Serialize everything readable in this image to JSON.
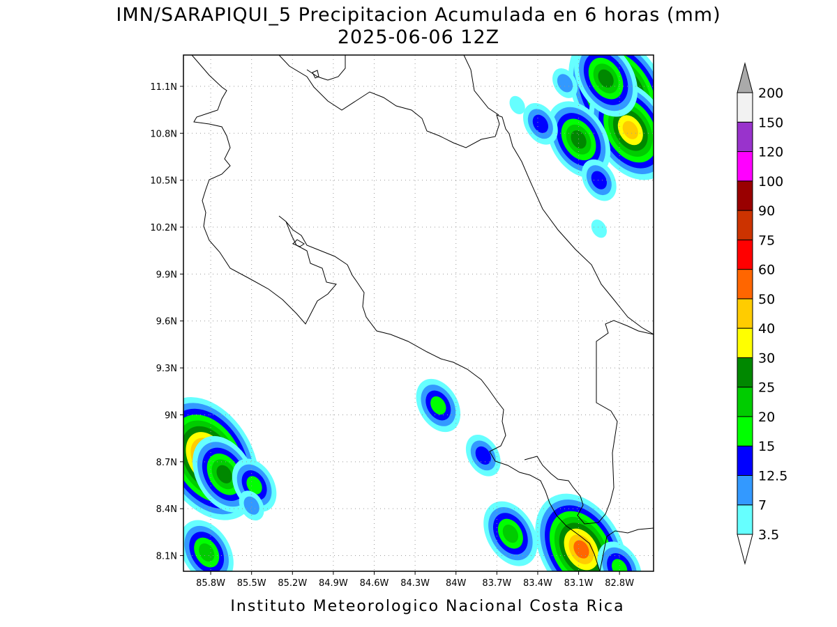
{
  "title": {
    "line1": "IMN/SARAPIQUI_5 Precipitacion Acumulada en 6 horas (mm)",
    "line2": "2025-06-06 12Z"
  },
  "footer": "Instituto Meteorologico Nacional Costa Rica",
  "map": {
    "lon_range": [
      -86.0,
      -82.55
    ],
    "lat_range": [
      8.0,
      11.3
    ],
    "x_ticks": [
      {
        "value": -85.8,
        "label": "85.8W"
      },
      {
        "value": -85.5,
        "label": "85.5W"
      },
      {
        "value": -85.2,
        "label": "85.2W"
      },
      {
        "value": -84.9,
        "label": "84.9W"
      },
      {
        "value": -84.6,
        "label": "84.6W"
      },
      {
        "value": -84.3,
        "label": "84.3W"
      },
      {
        "value": -84.0,
        "label": "84W"
      },
      {
        "value": -83.7,
        "label": "83.7W"
      },
      {
        "value": -83.4,
        "label": "83.4W"
      },
      {
        "value": -83.1,
        "label": "83.1W"
      },
      {
        "value": -82.8,
        "label": "82.8W"
      }
    ],
    "y_ticks": [
      {
        "value": 11.1,
        "label": "11.1N"
      },
      {
        "value": 10.8,
        "label": "10.8N"
      },
      {
        "value": 10.5,
        "label": "10.5N"
      },
      {
        "value": 10.2,
        "label": "10.2N"
      },
      {
        "value": 9.9,
        "label": "9.9N"
      },
      {
        "value": 9.6,
        "label": "9.6N"
      },
      {
        "value": 9.3,
        "label": "9.3N"
      },
      {
        "value": 9.0,
        "label": "9N"
      },
      {
        "value": 8.7,
        "label": "8.7N"
      },
      {
        "value": 8.4,
        "label": "8.4N"
      },
      {
        "value": 8.1,
        "label": "8.1N"
      }
    ],
    "grid": true
  },
  "colorbar": {
    "levels": [
      {
        "label": "3.5",
        "color": "#66ffff"
      },
      {
        "label": "7",
        "color": "#3399ff"
      },
      {
        "label": "12.5",
        "color": "#0000ff"
      },
      {
        "label": "15",
        "color": "#00ff00"
      },
      {
        "label": "20",
        "color": "#00cc00"
      },
      {
        "label": "25",
        "color": "#008800"
      },
      {
        "label": "30",
        "color": "#ffff00"
      },
      {
        "label": "40",
        "color": "#ffcc00"
      },
      {
        "label": "50",
        "color": "#ff6600"
      },
      {
        "label": "60",
        "color": "#ff0000"
      },
      {
        "label": "75",
        "color": "#cc3300"
      },
      {
        "label": "90",
        "color": "#990000"
      },
      {
        "label": "100",
        "color": "#ff00ff"
      },
      {
        "label": "120",
        "color": "#9933cc"
      },
      {
        "label": "150",
        "color": "#f2f2f2"
      },
      {
        "label": "200",
        "color": ""
      }
    ],
    "top_arrow_color": "#aaaaaa",
    "bottom_arrow_color": "#ffffff"
  },
  "precip_cells": [
    {
      "lon": -82.8,
      "lat": 11.05,
      "levels": 10
    },
    {
      "lon": -82.72,
      "lat": 10.82,
      "levels": 8
    },
    {
      "lon": -82.9,
      "lat": 11.15,
      "levels": 6
    },
    {
      "lon": -83.1,
      "lat": 10.76,
      "levels": 6
    },
    {
      "lon": -82.95,
      "lat": 10.5,
      "levels": 3
    },
    {
      "lon": -83.38,
      "lat": 10.86,
      "levels": 3
    },
    {
      "lon": -83.2,
      "lat": 11.12,
      "levels": 2
    },
    {
      "lon": -83.55,
      "lat": 10.98,
      "levels": 1
    },
    {
      "lon": -82.95,
      "lat": 10.19,
      "levels": 1
    },
    {
      "lon": -85.82,
      "lat": 8.72,
      "levels": 10
    },
    {
      "lon": -85.7,
      "lat": 8.62,
      "levels": 6
    },
    {
      "lon": -85.48,
      "lat": 8.55,
      "levels": 4
    },
    {
      "lon": -85.83,
      "lat": 8.12,
      "levels": 5
    },
    {
      "lon": -85.5,
      "lat": 8.42,
      "levels": 2
    },
    {
      "lon": -84.13,
      "lat": 9.06,
      "levels": 4
    },
    {
      "lon": -83.8,
      "lat": 8.74,
      "levels": 3
    },
    {
      "lon": -83.6,
      "lat": 8.24,
      "levels": 5
    },
    {
      "lon": -83.08,
      "lat": 8.14,
      "levels": 9
    },
    {
      "lon": -82.8,
      "lat": 8.02,
      "levels": 4
    }
  ]
}
